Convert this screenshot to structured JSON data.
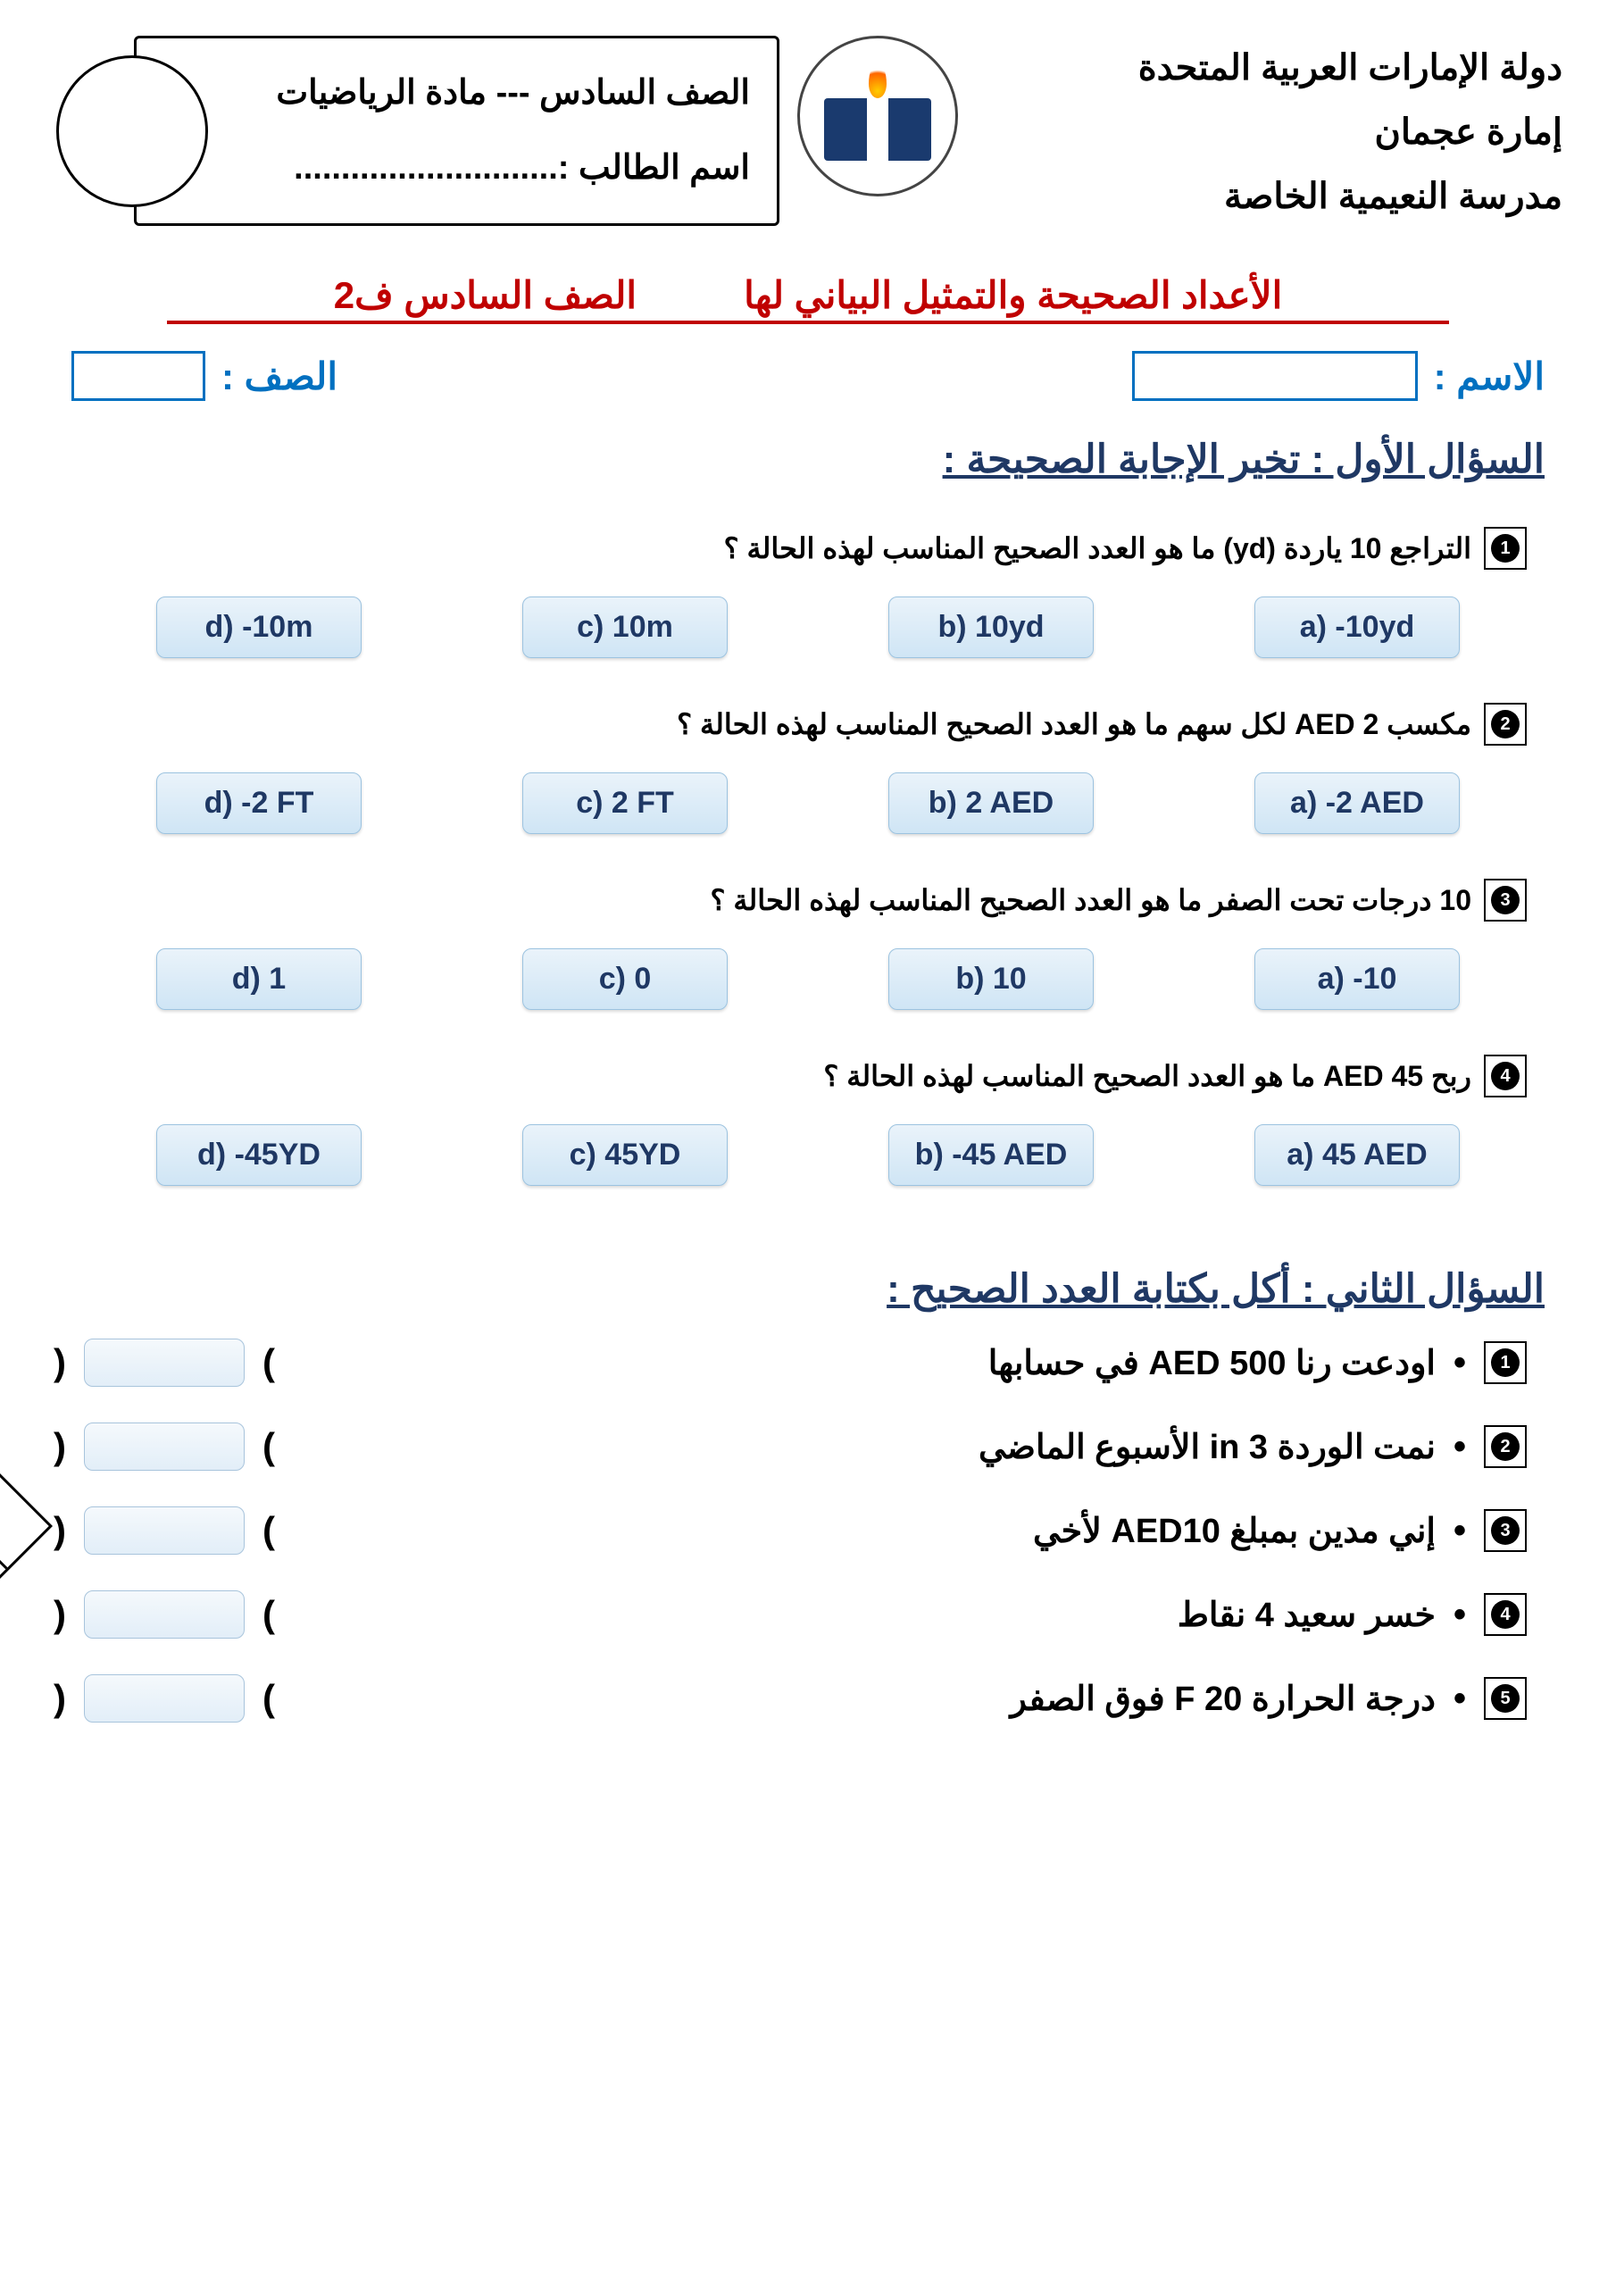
{
  "header": {
    "country": "دولة الإمارات العربية المتحدة",
    "emirate": "إمارة عجمان",
    "school": "مدرسة النعيمية الخاصة",
    "grade_subject": "الصف السادس --- مادة الرياضيات",
    "student_label": "اسم الطالب :............................"
  },
  "title": {
    "main": "الأعداد الصحيحة والتمثيل البياني لها",
    "grade": "الصف السادس ف2"
  },
  "fields": {
    "name_label": "الاسم :",
    "class_label": "الصف :"
  },
  "q1": {
    "header": "السؤال الأول : تخير الإجابة الصحيحة :",
    "items": [
      {
        "num": "1",
        "prompt": "التراجع 10 ياردة (yd) ما هو العدد الصحيح المناسب لهذه الحالة ؟",
        "opts": [
          "a) -10yd",
          "b) 10yd",
          "c) 10m",
          "d) -10m"
        ]
      },
      {
        "num": "2",
        "prompt": "مكسب AED 2 لكل سهم ما هو العدد الصحيح المناسب لهذه الحالة ؟",
        "opts": [
          "a) -2 AED",
          "b) 2 AED",
          "c) 2 FT",
          "d) -2 FT"
        ]
      },
      {
        "num": "3",
        "prompt": "10 درجات تحت الصفر ما هو العدد الصحيح المناسب لهذه الحالة ؟",
        "opts": [
          "a) -10",
          "b) 10",
          "c) 0",
          "d) 1"
        ]
      },
      {
        "num": "4",
        "prompt": "ربح AED 45 ما هو العدد الصحيح المناسب لهذه الحالة ؟",
        "opts": [
          "a) 45 AED",
          "b) -45 AED",
          "c) 45YD",
          "d) -45YD"
        ]
      }
    ]
  },
  "q2": {
    "header": "السؤال الثاني  : أكل بكتابة العدد الصحيح :",
    "items": [
      {
        "num": "1",
        "text": "اودعت رنا AED  500 في حسابها"
      },
      {
        "num": "2",
        "text": "نمت الوردة 3 in الأسبوع الماضي"
      },
      {
        "num": "3",
        "text": "إني مدين بمبلغ   AED10   لأخي"
      },
      {
        "num": "4",
        "text": "خسر سعيد  4   نقاط"
      },
      {
        "num": "5",
        "text": "درجة الحرارة  20 F  فوق الصفر"
      }
    ]
  },
  "colors": {
    "title_red": "#c00000",
    "label_blue": "#0070c0",
    "heading_navy": "#1f3864",
    "button_grad_top": "#eaf3fa",
    "button_grad_bot": "#cfe5f5",
    "button_border": "#9cc3e0"
  }
}
